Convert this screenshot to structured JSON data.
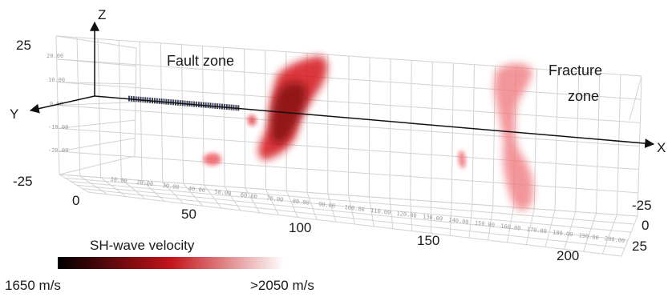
{
  "axes": {
    "z_label": "Z",
    "y_label": "Y",
    "x_label": "X",
    "z_tick_top": "25",
    "z_tick_bottom": "-25",
    "x_ticks": [
      "0",
      "50",
      "100",
      "150",
      "200"
    ],
    "y_ticks": [
      "-25",
      "0",
      "25"
    ],
    "inner_wall_ticks": [
      "20.00",
      "10.00",
      "0.00",
      "-10.00",
      "-20.00"
    ],
    "floor_ticks": [
      "10.00",
      "20.00",
      "30.00",
      "40.00",
      "50.00",
      "60.00",
      "70.00",
      "80.00",
      "90.00",
      "100.00",
      "110.00",
      "120.00",
      "130.00",
      "140.00",
      "150.00",
      "160.00",
      "170.00",
      "180.00",
      "190.00",
      "200.00"
    ]
  },
  "annotations": {
    "fault_zone": "Fault zone",
    "fracture_zone_line1": "Fracture",
    "fracture_zone_line2": "zone"
  },
  "legend": {
    "title": "SH-wave velocity",
    "min_label": "1650 m/s",
    "max_label": ">2050 m/s",
    "color_low": "#000000",
    "color_mid": "#c4141a",
    "color_high": "#ffffff"
  },
  "colors": {
    "fault_dark": "#7a0a0f",
    "fault_red": "#d4151c",
    "fracture_pink": "#f07b80",
    "grid": "#d2d2d2"
  }
}
